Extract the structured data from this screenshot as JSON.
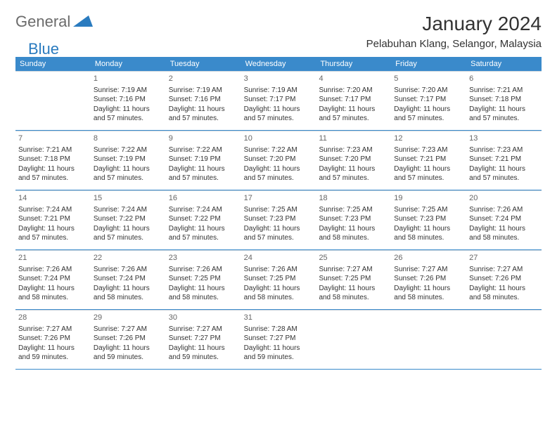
{
  "logo": {
    "text_general": "General",
    "text_blue": "Blue",
    "icon_color": "#2a7bbf"
  },
  "header": {
    "month_title": "January 2024",
    "location": "Pelabuhan Klang, Selangor, Malaysia"
  },
  "colors": {
    "header_bar": "#3a8acb",
    "row_divider": "#3a8acb",
    "cell_divider": "#d0d8de",
    "text": "#333333"
  },
  "weekdays": [
    "Sunday",
    "Monday",
    "Tuesday",
    "Wednesday",
    "Thursday",
    "Friday",
    "Saturday"
  ],
  "weeks": [
    [
      {
        "day": "",
        "lines": []
      },
      {
        "day": "1",
        "lines": [
          "Sunrise: 7:19 AM",
          "Sunset: 7:16 PM",
          "Daylight: 11 hours and 57 minutes."
        ]
      },
      {
        "day": "2",
        "lines": [
          "Sunrise: 7:19 AM",
          "Sunset: 7:16 PM",
          "Daylight: 11 hours and 57 minutes."
        ]
      },
      {
        "day": "3",
        "lines": [
          "Sunrise: 7:19 AM",
          "Sunset: 7:17 PM",
          "Daylight: 11 hours and 57 minutes."
        ]
      },
      {
        "day": "4",
        "lines": [
          "Sunrise: 7:20 AM",
          "Sunset: 7:17 PM",
          "Daylight: 11 hours and 57 minutes."
        ]
      },
      {
        "day": "5",
        "lines": [
          "Sunrise: 7:20 AM",
          "Sunset: 7:17 PM",
          "Daylight: 11 hours and 57 minutes."
        ]
      },
      {
        "day": "6",
        "lines": [
          "Sunrise: 7:21 AM",
          "Sunset: 7:18 PM",
          "Daylight: 11 hours and 57 minutes."
        ]
      }
    ],
    [
      {
        "day": "7",
        "lines": [
          "Sunrise: 7:21 AM",
          "Sunset: 7:18 PM",
          "Daylight: 11 hours and 57 minutes."
        ]
      },
      {
        "day": "8",
        "lines": [
          "Sunrise: 7:22 AM",
          "Sunset: 7:19 PM",
          "Daylight: 11 hours and 57 minutes."
        ]
      },
      {
        "day": "9",
        "lines": [
          "Sunrise: 7:22 AM",
          "Sunset: 7:19 PM",
          "Daylight: 11 hours and 57 minutes."
        ]
      },
      {
        "day": "10",
        "lines": [
          "Sunrise: 7:22 AM",
          "Sunset: 7:20 PM",
          "Daylight: 11 hours and 57 minutes."
        ]
      },
      {
        "day": "11",
        "lines": [
          "Sunrise: 7:23 AM",
          "Sunset: 7:20 PM",
          "Daylight: 11 hours and 57 minutes."
        ]
      },
      {
        "day": "12",
        "lines": [
          "Sunrise: 7:23 AM",
          "Sunset: 7:21 PM",
          "Daylight: 11 hours and 57 minutes."
        ]
      },
      {
        "day": "13",
        "lines": [
          "Sunrise: 7:23 AM",
          "Sunset: 7:21 PM",
          "Daylight: 11 hours and 57 minutes."
        ]
      }
    ],
    [
      {
        "day": "14",
        "lines": [
          "Sunrise: 7:24 AM",
          "Sunset: 7:21 PM",
          "Daylight: 11 hours and 57 minutes."
        ]
      },
      {
        "day": "15",
        "lines": [
          "Sunrise: 7:24 AM",
          "Sunset: 7:22 PM",
          "Daylight: 11 hours and 57 minutes."
        ]
      },
      {
        "day": "16",
        "lines": [
          "Sunrise: 7:24 AM",
          "Sunset: 7:22 PM",
          "Daylight: 11 hours and 57 minutes."
        ]
      },
      {
        "day": "17",
        "lines": [
          "Sunrise: 7:25 AM",
          "Sunset: 7:23 PM",
          "Daylight: 11 hours and 57 minutes."
        ]
      },
      {
        "day": "18",
        "lines": [
          "Sunrise: 7:25 AM",
          "Sunset: 7:23 PM",
          "Daylight: 11 hours and 58 minutes."
        ]
      },
      {
        "day": "19",
        "lines": [
          "Sunrise: 7:25 AM",
          "Sunset: 7:23 PM",
          "Daylight: 11 hours and 58 minutes."
        ]
      },
      {
        "day": "20",
        "lines": [
          "Sunrise: 7:26 AM",
          "Sunset: 7:24 PM",
          "Daylight: 11 hours and 58 minutes."
        ]
      }
    ],
    [
      {
        "day": "21",
        "lines": [
          "Sunrise: 7:26 AM",
          "Sunset: 7:24 PM",
          "Daylight: 11 hours and 58 minutes."
        ]
      },
      {
        "day": "22",
        "lines": [
          "Sunrise: 7:26 AM",
          "Sunset: 7:24 PM",
          "Daylight: 11 hours and 58 minutes."
        ]
      },
      {
        "day": "23",
        "lines": [
          "Sunrise: 7:26 AM",
          "Sunset: 7:25 PM",
          "Daylight: 11 hours and 58 minutes."
        ]
      },
      {
        "day": "24",
        "lines": [
          "Sunrise: 7:26 AM",
          "Sunset: 7:25 PM",
          "Daylight: 11 hours and 58 minutes."
        ]
      },
      {
        "day": "25",
        "lines": [
          "Sunrise: 7:27 AM",
          "Sunset: 7:25 PM",
          "Daylight: 11 hours and 58 minutes."
        ]
      },
      {
        "day": "26",
        "lines": [
          "Sunrise: 7:27 AM",
          "Sunset: 7:26 PM",
          "Daylight: 11 hours and 58 minutes."
        ]
      },
      {
        "day": "27",
        "lines": [
          "Sunrise: 7:27 AM",
          "Sunset: 7:26 PM",
          "Daylight: 11 hours and 58 minutes."
        ]
      }
    ],
    [
      {
        "day": "28",
        "lines": [
          "Sunrise: 7:27 AM",
          "Sunset: 7:26 PM",
          "Daylight: 11 hours and 59 minutes."
        ]
      },
      {
        "day": "29",
        "lines": [
          "Sunrise: 7:27 AM",
          "Sunset: 7:26 PM",
          "Daylight: 11 hours and 59 minutes."
        ]
      },
      {
        "day": "30",
        "lines": [
          "Sunrise: 7:27 AM",
          "Sunset: 7:27 PM",
          "Daylight: 11 hours and 59 minutes."
        ]
      },
      {
        "day": "31",
        "lines": [
          "Sunrise: 7:28 AM",
          "Sunset: 7:27 PM",
          "Daylight: 11 hours and 59 minutes."
        ]
      },
      {
        "day": "",
        "lines": []
      },
      {
        "day": "",
        "lines": []
      },
      {
        "day": "",
        "lines": []
      }
    ]
  ]
}
